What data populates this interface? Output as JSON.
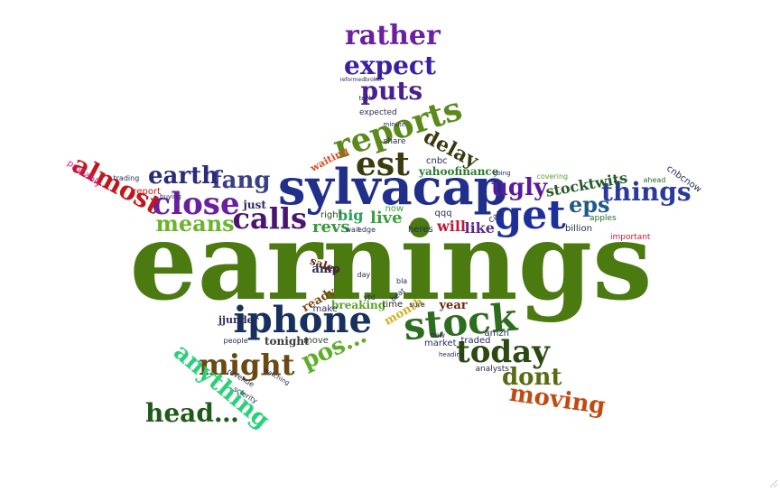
{
  "word_cloud": {
    "words": [
      {
        "text": "earnings",
        "color": "#4a7a10"
      },
      {
        "text": "sylvacap",
        "color": "#1f2f8a"
      },
      {
        "text": "iphone",
        "color": "#17305e"
      },
      {
        "text": "stock",
        "color": "#2d6e1e"
      },
      {
        "text": "today",
        "color": "#2b4a12"
      },
      {
        "text": "get",
        "color": "#1d2f9a"
      },
      {
        "text": "reports",
        "color": "#5a8a1a"
      },
      {
        "text": "est",
        "color": "#3b3b10"
      },
      {
        "text": "might",
        "color": "#6a4a12"
      },
      {
        "text": "close",
        "color": "#6a1fa0"
      },
      {
        "text": "calls",
        "color": "#4a1570"
      },
      {
        "text": "fang",
        "color": "#3a3f8a"
      },
      {
        "text": "earth",
        "color": "#2b2b7a"
      },
      {
        "text": "almost",
        "color": "#c0181e"
      },
      {
        "text": "means",
        "color": "#6ab42a"
      },
      {
        "text": "anything",
        "color": "#2ad07a"
      },
      {
        "text": "head…",
        "color": "#1f5a1a"
      },
      {
        "text": "pos…",
        "color": "#5fae2a"
      },
      {
        "text": "moving",
        "color": "#c04a12"
      },
      {
        "text": "dont",
        "color": "#5a6a12"
      },
      {
        "text": "things",
        "color": "#2a3a9a"
      },
      {
        "text": "eps",
        "color": "#1f5a8a"
      },
      {
        "text": "ugly",
        "color": "#5a1a9a"
      },
      {
        "text": "stocktwits",
        "color": "#2a5a2a"
      },
      {
        "text": "delay",
        "color": "#3a3a12"
      },
      {
        "text": "puts",
        "color": "#4a2090"
      },
      {
        "text": "expect",
        "color": "#3a20a0"
      },
      {
        "text": "rather",
        "color": "#6a20a0"
      },
      {
        "text": "revs",
        "color": "#3a9a3a"
      },
      {
        "text": "live",
        "color": "#3aa03a"
      },
      {
        "text": "will",
        "color": "#c01a3a"
      },
      {
        "text": "like",
        "color": "#5a2a8a"
      },
      {
        "text": "big",
        "color": "#2aa05a"
      },
      {
        "text": "yahoofinance",
        "color": "#2a7a2a"
      },
      {
        "text": "breaking",
        "color": "#5aa02a"
      },
      {
        "text": "month",
        "color": "#d0b020"
      },
      {
        "text": "year",
        "color": "#6a2a12"
      },
      {
        "text": "tonight",
        "color": "#3a3a3a"
      },
      {
        "text": "ready",
        "color": "#7a4a12"
      },
      {
        "text": "amp",
        "color": "#2a2a5a"
      },
      {
        "text": "sales",
        "color": "#5a2a12"
      },
      {
        "text": "jjunder",
        "color": "#2a2a5a"
      },
      {
        "text": "make",
        "color": "#2a2a5a"
      },
      {
        "text": "time",
        "color": "#2a2a2a"
      },
      {
        "text": "move",
        "color": "#2a4a2a"
      },
      {
        "text": "market",
        "color": "#2a2a5a"
      },
      {
        "text": "traded",
        "color": "#2a2a5a"
      },
      {
        "text": "amzn",
        "color": "#2a2a5a"
      },
      {
        "text": "analysts",
        "color": "#2a2a5a"
      },
      {
        "text": "heres",
        "color": "#2a2a5a"
      },
      {
        "text": "qqq",
        "color": "#2a2a5a"
      },
      {
        "text": "call",
        "color": "#2a2a5a"
      },
      {
        "text": "billion",
        "color": "#2a2a5a"
      },
      {
        "text": "apples",
        "color": "#2a6a2a"
      },
      {
        "text": "important",
        "color": "#c01a3a"
      },
      {
        "text": "cnbcnow",
        "color": "#2a2a5a"
      },
      {
        "text": "ahead",
        "color": "#2a6a2a"
      },
      {
        "text": "covering",
        "color": "#5aa02a"
      },
      {
        "text": "cnbc",
        "color": "#2a2a5a"
      },
      {
        "text": "waiting",
        "color": "#d05020"
      },
      {
        "text": "expected",
        "color": "#2a2a5a"
      },
      {
        "text": "share",
        "color": "#2a2a5a"
      },
      {
        "text": "just",
        "color": "#2a2a5a"
      },
      {
        "text": "report",
        "color": "#c01a1a"
      },
      {
        "text": "trading",
        "color": "#2a2a5a"
      },
      {
        "text": "probably",
        "color": "#d0208a"
      },
      {
        "text": "right",
        "color": "#2a4a12"
      },
      {
        "text": "now",
        "color": "#3aa03a"
      },
      {
        "text": "edge",
        "color": "#2a2a5a"
      },
      {
        "text": "people",
        "color": "#2a2a5a"
      },
      {
        "text": "revenue",
        "color": "#2a2a5a"
      },
      {
        "text": "watching",
        "color": "#2a2a5a"
      },
      {
        "text": "sclerity",
        "color": "#2a2a5a"
      },
      {
        "text": "wait",
        "color": "#2a2a5a"
      },
      {
        "text": "day",
        "color": "#2a2a5a"
      },
      {
        "text": "ytd",
        "color": "#2a2a5a"
      },
      {
        "text": "beat",
        "color": "#2a2a5a"
      },
      {
        "text": "bla",
        "color": "#2a2a5a"
      },
      {
        "text": "sure",
        "color": "#2a2a5a"
      },
      {
        "text": "dow",
        "color": "#2a2a5a"
      },
      {
        "text": "heading",
        "color": "#2a2a5a"
      },
      {
        "text": "going",
        "color": "#2a2a5a"
      },
      {
        "text": "minute",
        "color": "#2a2a5a"
      },
      {
        "text": "tech",
        "color": "#2a2a5a"
      },
      {
        "text": "buying",
        "color": "#2a2a5a"
      },
      {
        "text": "reformedbroker",
        "color": "#2a2a5a"
      }
    ]
  }
}
